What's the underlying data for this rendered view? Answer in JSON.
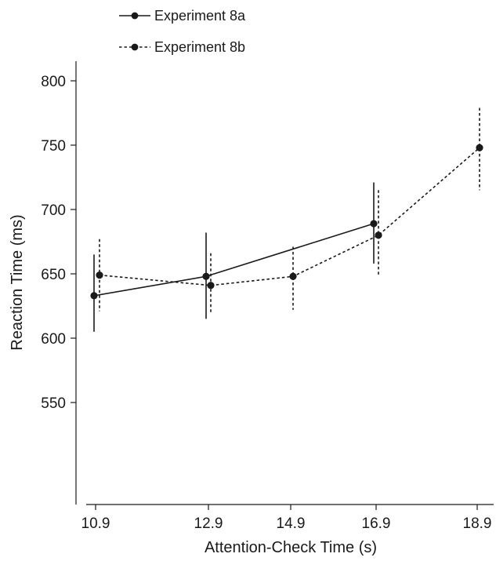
{
  "chart_data": {
    "type": "line",
    "xlabel": "Attention-Check Time (s)",
    "ylabel": "Reaction Time (ms)",
    "categories": [
      "10.9",
      "12.9",
      "14.9",
      "16.9",
      "18.9"
    ],
    "ylim": [
      530,
      810
    ],
    "yticks": [
      550,
      600,
      650,
      700,
      750,
      800
    ],
    "grid": false,
    "legend_position": "top-left",
    "series": [
      {
        "name": "Experiment 8a",
        "style": "solid",
        "color": "#1a1a1a",
        "x": [
          "10.9",
          "12.9",
          "16.9"
        ],
        "values": [
          633,
          648,
          689
        ],
        "error_low": [
          605,
          615,
          658
        ],
        "error_high": [
          665,
          682,
          721
        ]
      },
      {
        "name": "Experiment 8b",
        "style": "dotted",
        "color": "#1a1a1a",
        "x": [
          "10.9",
          "12.9",
          "14.9",
          "16.9",
          "18.9"
        ],
        "values": [
          649,
          641,
          648,
          680,
          748
        ],
        "error_low": [
          621,
          619,
          622,
          649,
          715
        ],
        "error_high": [
          677,
          666,
          671,
          715,
          779
        ]
      }
    ]
  }
}
